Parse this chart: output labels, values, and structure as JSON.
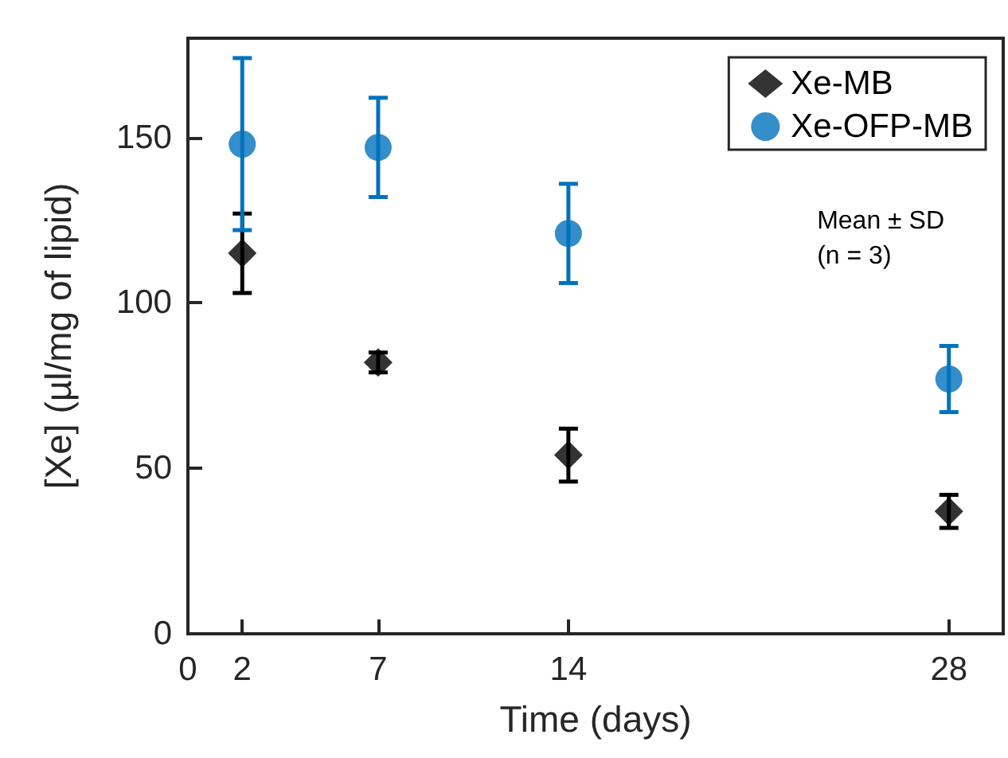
{
  "chart_data": {
    "type": "scatter",
    "xlabel": "Time (days)",
    "ylabel": "[Xe] (µl/mg of lipid)",
    "x": [
      2,
      7,
      14,
      28
    ],
    "series": [
      {
        "name": "Xe-MB",
        "color": "#000000",
        "marker": "diamond",
        "values": [
          115,
          82,
          54,
          37
        ],
        "errors": [
          [
            103,
            127
          ],
          [
            79,
            85
          ],
          [
            46,
            62
          ],
          [
            32,
            42
          ]
        ]
      },
      {
        "name": "Xe-OFP-MB",
        "color": "#0072bd",
        "marker": "circle",
        "values": [
          148,
          147,
          121,
          77
        ],
        "errors": [
          [
            122,
            174
          ],
          [
            132,
            162
          ],
          [
            106,
            136
          ],
          [
            67,
            87
          ]
        ]
      }
    ],
    "xlim": [
      0,
      30
    ],
    "xticks": [
      0,
      2,
      7,
      14,
      28
    ],
    "ylim": [
      0,
      180
    ],
    "yticks": [
      0,
      50,
      100,
      150
    ],
    "annotations": [
      "Mean ± SD\n(n = 3)"
    ],
    "legend": "top right",
    "grid": false
  }
}
